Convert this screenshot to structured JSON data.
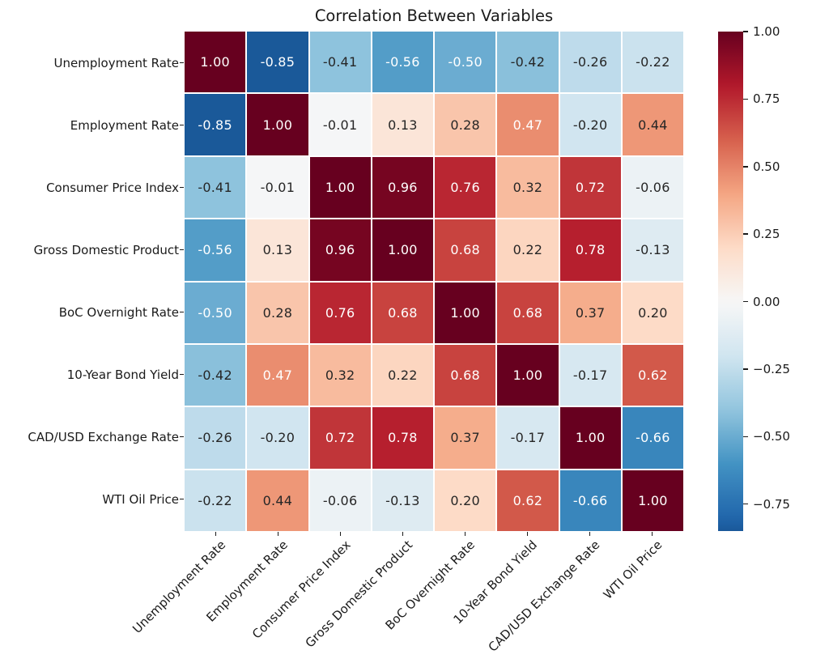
{
  "title": "Correlation Between Variables",
  "chart_data": {
    "type": "heatmap",
    "title": "Correlation Between Variables",
    "categories": [
      "Unemployment Rate",
      "Employment Rate",
      "Consumer Price Index",
      "Gross Domestic Product",
      "BoC Overnight Rate",
      "10-Year Bond Yield",
      "CAD/USD Exchange Rate",
      "WTI Oil Price"
    ],
    "matrix": [
      [
        1.0,
        -0.85,
        -0.41,
        -0.56,
        -0.5,
        -0.42,
        -0.26,
        -0.22
      ],
      [
        -0.85,
        1.0,
        -0.01,
        0.13,
        0.28,
        0.47,
        -0.2,
        0.44
      ],
      [
        -0.41,
        -0.01,
        1.0,
        0.96,
        0.76,
        0.32,
        0.72,
        -0.06
      ],
      [
        -0.56,
        0.13,
        0.96,
        1.0,
        0.68,
        0.22,
        0.78,
        -0.13
      ],
      [
        -0.5,
        0.28,
        0.76,
        0.68,
        1.0,
        0.68,
        0.37,
        0.2
      ],
      [
        -0.42,
        0.47,
        0.32,
        0.22,
        0.68,
        1.0,
        -0.17,
        0.62
      ],
      [
        -0.26,
        -0.2,
        0.72,
        0.78,
        0.37,
        -0.17,
        1.0,
        -0.66
      ],
      [
        -0.22,
        0.44,
        -0.06,
        -0.13,
        0.2,
        0.62,
        -0.66,
        1.0
      ]
    ],
    "value_decimals": 2,
    "colormap": "RdBu_r",
    "colormap_anchors": [
      "#053061",
      "#2166ac",
      "#4393c3",
      "#92c5de",
      "#d1e5f0",
      "#f7f7f7",
      "#fddbc7",
      "#f4a582",
      "#d6604d",
      "#b2182b",
      "#67001f"
    ],
    "color_norm_range": [
      -1,
      1
    ],
    "grid_line_color": "#ffffff",
    "annotation_colors": {
      "on_light": "#262626",
      "on_dark": "#ffffff"
    },
    "luminance_threshold": 0.408,
    "legend_position": "right",
    "colorbar": {
      "min": -0.85,
      "max": 1.0,
      "ticks": [
        {
          "value": 1.0,
          "label": "1.00"
        },
        {
          "value": 0.75,
          "label": "0.75"
        },
        {
          "value": 0.5,
          "label": "0.50"
        },
        {
          "value": 0.25,
          "label": "0.25"
        },
        {
          "value": 0.0,
          "label": "0.00"
        },
        {
          "value": -0.25,
          "label": "−0.25"
        },
        {
          "value": -0.5,
          "label": "−0.50"
        },
        {
          "value": -0.75,
          "label": "−0.75"
        }
      ]
    }
  }
}
